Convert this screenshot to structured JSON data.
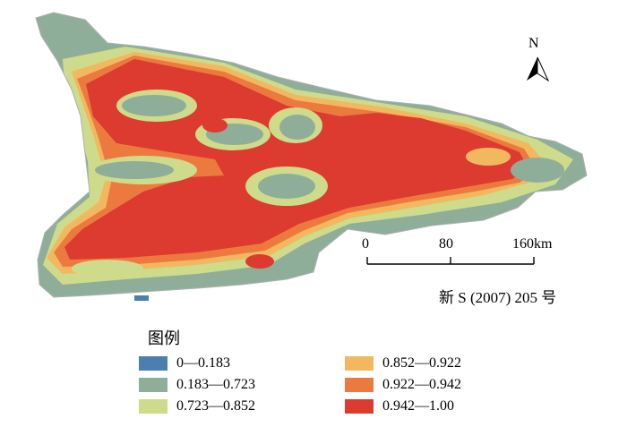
{
  "legend": {
    "title": "图例",
    "items": [
      {
        "label": "0—0.183",
        "color": "#4a7fae"
      },
      {
        "label": "0.183—0.723",
        "color": "#8fae9a"
      },
      {
        "label": "0.723—0.852",
        "color": "#cddb8a"
      },
      {
        "label": "0.852—0.922",
        "color": "#f2b860"
      },
      {
        "label": "0.922—0.942",
        "color": "#ec7a3f"
      },
      {
        "label": "0.942—1.00",
        "color": "#dd3a30"
      }
    ]
  },
  "scale_bar": {
    "labels": [
      "0",
      "80",
      "160km"
    ]
  },
  "north_arrow": {
    "letter": "N"
  },
  "map_number": "新 S (2007) 205 号",
  "colors": {
    "outline": "#b0b0b0"
  }
}
